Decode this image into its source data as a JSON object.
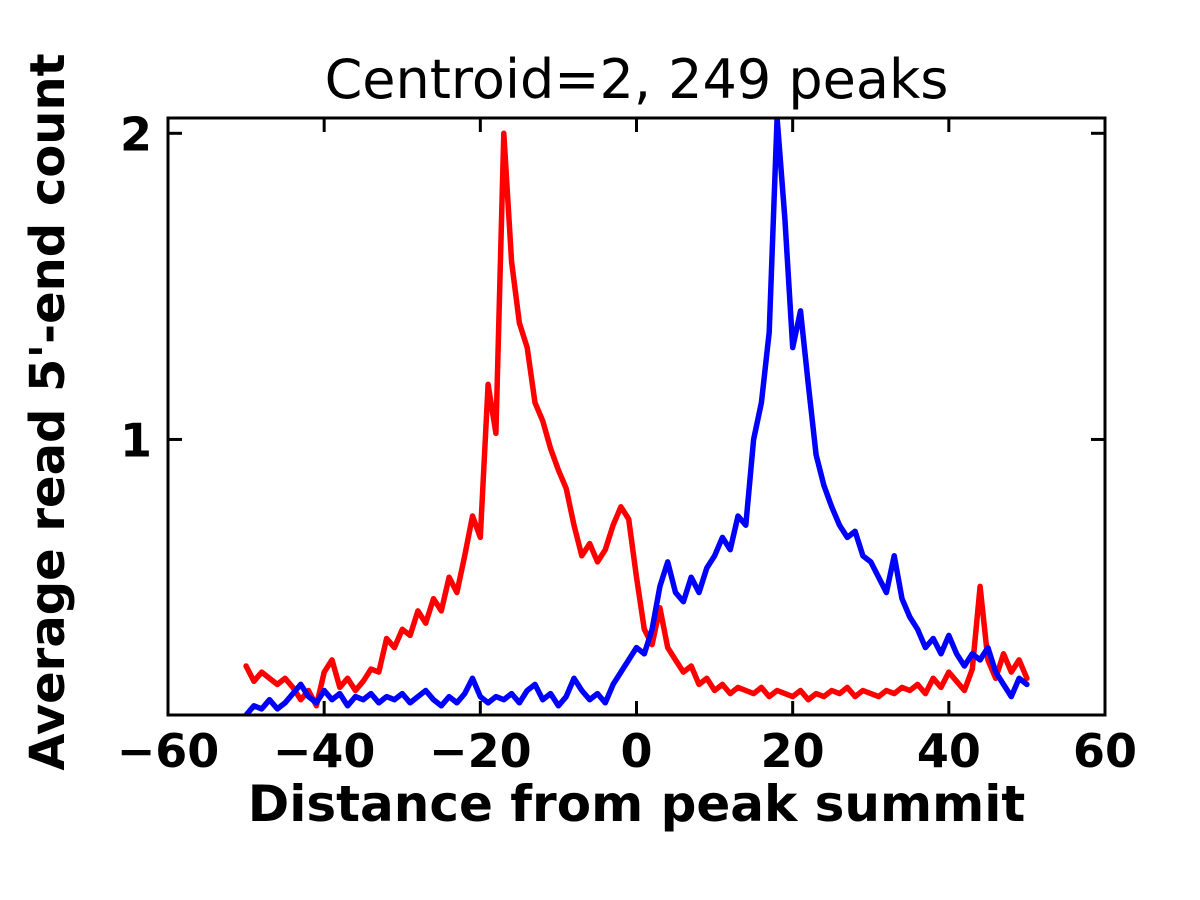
{
  "chart_data": {
    "type": "line",
    "title": "Centroid=2, 249 peaks",
    "xlabel": "Distance from peak summit",
    "ylabel": "Average read 5'-end count",
    "xlim": [
      -60,
      60
    ],
    "ylim": [
      0.1,
      2.05
    ],
    "grid": false,
    "legend": "none",
    "xticks": [
      {
        "value": -60,
        "label": "−60"
      },
      {
        "value": -40,
        "label": "−40"
      },
      {
        "value": -20,
        "label": "−20"
      },
      {
        "value": 0,
        "label": "0"
      },
      {
        "value": 20,
        "label": "20"
      },
      {
        "value": 40,
        "label": "40"
      },
      {
        "value": 60,
        "label": "60"
      }
    ],
    "yticks": [
      {
        "value": 1,
        "label": "1"
      },
      {
        "value": 2,
        "label": "2"
      }
    ],
    "x": [
      -50,
      -49,
      -48,
      -47,
      -46,
      -45,
      -44,
      -43,
      -42,
      -41,
      -40,
      -39,
      -38,
      -37,
      -36,
      -35,
      -34,
      -33,
      -32,
      -31,
      -30,
      -29,
      -28,
      -27,
      -26,
      -25,
      -24,
      -23,
      -22,
      -21,
      -20,
      -19,
      -18,
      -17,
      -16,
      -15,
      -14,
      -13,
      -12,
      -11,
      -10,
      -9,
      -8,
      -7,
      -6,
      -5,
      -4,
      -3,
      -2,
      -1,
      0,
      1,
      2,
      3,
      4,
      5,
      6,
      7,
      8,
      9,
      10,
      11,
      12,
      13,
      14,
      15,
      16,
      17,
      18,
      19,
      20,
      21,
      22,
      23,
      24,
      25,
      26,
      27,
      28,
      29,
      30,
      31,
      32,
      33,
      34,
      35,
      36,
      37,
      38,
      39,
      40,
      41,
      42,
      43,
      44,
      45,
      46,
      47,
      48,
      49,
      50
    ],
    "series": [
      {
        "name": "red",
        "color": "#ff0000",
        "values": [
          0.26,
          0.21,
          0.24,
          0.22,
          0.2,
          0.22,
          0.19,
          0.15,
          0.18,
          0.13,
          0.24,
          0.28,
          0.19,
          0.22,
          0.18,
          0.21,
          0.25,
          0.24,
          0.35,
          0.32,
          0.38,
          0.36,
          0.44,
          0.4,
          0.48,
          0.44,
          0.55,
          0.5,
          0.62,
          0.75,
          0.68,
          1.18,
          1.02,
          2.0,
          1.58,
          1.38,
          1.3,
          1.12,
          1.06,
          0.97,
          0.9,
          0.84,
          0.72,
          0.62,
          0.66,
          0.6,
          0.64,
          0.72,
          0.78,
          0.74,
          0.55,
          0.38,
          0.33,
          0.45,
          0.32,
          0.28,
          0.24,
          0.26,
          0.2,
          0.22,
          0.18,
          0.2,
          0.17,
          0.19,
          0.18,
          0.17,
          0.19,
          0.16,
          0.18,
          0.17,
          0.16,
          0.18,
          0.15,
          0.17,
          0.16,
          0.18,
          0.17,
          0.19,
          0.16,
          0.18,
          0.17,
          0.16,
          0.18,
          0.17,
          0.19,
          0.18,
          0.2,
          0.17,
          0.22,
          0.19,
          0.24,
          0.21,
          0.18,
          0.25,
          0.52,
          0.28,
          0.22,
          0.3,
          0.24,
          0.28,
          0.22
        ]
      },
      {
        "name": "blue",
        "color": "#0000ff",
        "values": [
          0.1,
          0.13,
          0.12,
          0.15,
          0.12,
          0.14,
          0.17,
          0.2,
          0.16,
          0.14,
          0.18,
          0.15,
          0.17,
          0.13,
          0.16,
          0.15,
          0.17,
          0.14,
          0.16,
          0.15,
          0.17,
          0.14,
          0.16,
          0.18,
          0.15,
          0.13,
          0.16,
          0.14,
          0.17,
          0.22,
          0.16,
          0.14,
          0.16,
          0.15,
          0.17,
          0.14,
          0.18,
          0.2,
          0.15,
          0.17,
          0.13,
          0.16,
          0.22,
          0.18,
          0.15,
          0.17,
          0.14,
          0.2,
          0.24,
          0.28,
          0.32,
          0.3,
          0.38,
          0.52,
          0.6,
          0.5,
          0.47,
          0.55,
          0.5,
          0.58,
          0.62,
          0.68,
          0.64,
          0.75,
          0.72,
          1.0,
          1.12,
          1.35,
          2.05,
          1.72,
          1.3,
          1.42,
          1.18,
          0.95,
          0.85,
          0.78,
          0.72,
          0.68,
          0.7,
          0.62,
          0.6,
          0.55,
          0.5,
          0.62,
          0.48,
          0.42,
          0.38,
          0.32,
          0.35,
          0.3,
          0.36,
          0.3,
          0.26,
          0.3,
          0.28,
          0.32,
          0.24,
          0.2,
          0.16,
          0.22,
          0.2
        ]
      }
    ],
    "colors": {
      "background": "#ffffff",
      "axes": "#000000",
      "text": "#000000"
    }
  }
}
